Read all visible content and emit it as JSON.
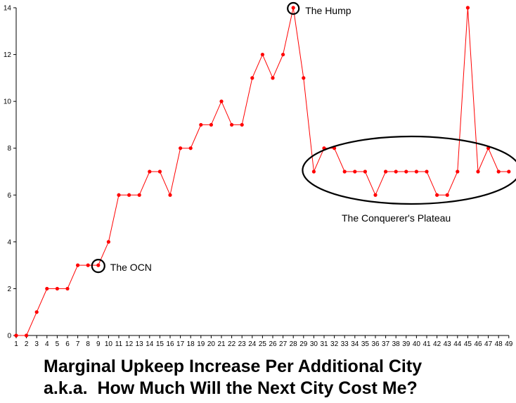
{
  "chart_data": {
    "type": "line",
    "x": [
      1,
      2,
      3,
      4,
      5,
      6,
      7,
      8,
      9,
      10,
      11,
      12,
      13,
      14,
      15,
      16,
      17,
      18,
      19,
      20,
      21,
      22,
      23,
      24,
      25,
      26,
      27,
      28,
      29,
      30,
      31,
      32,
      33,
      34,
      35,
      36,
      37,
      38,
      39,
      40,
      41,
      42,
      43,
      44,
      45,
      46,
      47,
      48,
      49
    ],
    "series": [
      {
        "values": [
          0,
          0,
          1,
          2,
          2,
          2,
          3,
          3,
          3,
          4,
          6,
          6,
          6,
          7,
          7,
          6,
          8,
          8,
          9,
          9,
          10,
          9,
          9,
          11,
          12,
          11,
          12,
          14,
          11,
          7,
          8,
          8,
          7,
          7,
          7,
          6,
          7,
          7,
          7,
          7,
          7,
          6,
          6,
          7,
          14,
          7,
          8,
          7,
          7
        ]
      }
    ],
    "ylim": [
      0,
      14
    ],
    "y_ticks": [
      "0",
      "2",
      "4",
      "6",
      "8",
      "10",
      "12",
      "14"
    ],
    "x_tick_labels": [
      "1",
      "2",
      "3",
      "4",
      "5",
      "6",
      "7",
      "8",
      "9",
      "10",
      "11",
      "12",
      "13",
      "14",
      "15",
      "16",
      "17",
      "18",
      "19",
      "20",
      "21",
      "22",
      "23",
      "24",
      "25",
      "26",
      "27",
      "28",
      "29",
      "30",
      "31",
      "32",
      "33",
      "34",
      "35",
      "36",
      "37",
      "38",
      "39",
      "40",
      "41",
      "42",
      "43",
      "44",
      "45",
      "46",
      "47",
      "48",
      "49"
    ],
    "grid": false,
    "colors": {
      "line": "#ff0000",
      "point": "#ff0000",
      "axis": "#000000"
    },
    "annotations": [
      {
        "text": "The Hump",
        "x": 28,
        "y": 14,
        "marker": "circle"
      },
      {
        "text": "The OCN",
        "x": 9,
        "y": 3,
        "marker": "circle"
      },
      {
        "text": "The Conquerer's Plateau",
        "marker": "ellipse",
        "x_from": 30,
        "x_to": 49
      }
    ],
    "caption": [
      "Marginal Upkeep Increase Per Additional City",
      "a.k.a.  How Much Will the Next City Cost Me?"
    ]
  }
}
